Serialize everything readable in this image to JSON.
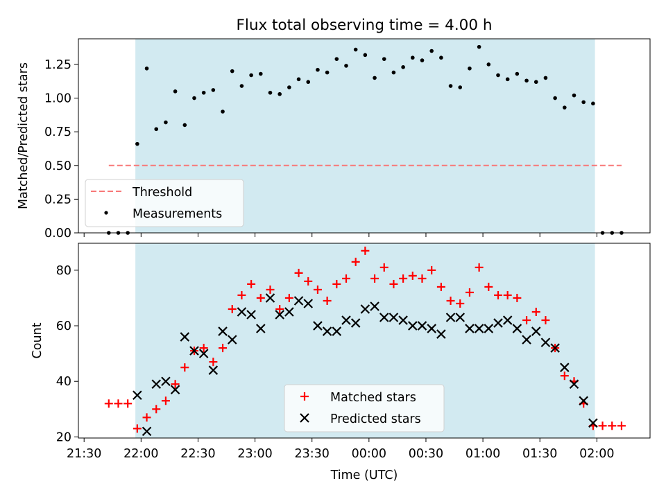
{
  "chart_data": [
    {
      "type": "scatter",
      "title": "Flux total observing time = 4.00 h",
      "ylabel": "Matched/Predicted stars",
      "xlabel": "",
      "ylim": [
        0.0,
        1.44
      ],
      "yticks": [
        0.0,
        0.25,
        0.5,
        0.75,
        1.0,
        1.25
      ],
      "ytick_labels": [
        "0.00",
        "0.25",
        "0.50",
        "0.75",
        "1.00",
        "1.25"
      ],
      "observing_window": [
        "21:57",
        "01:59"
      ],
      "threshold": {
        "name": "Threshold",
        "value": 0.5,
        "x_range": [
          "21:43",
          "02:13"
        ],
        "color": "#f87878"
      },
      "legend": {
        "placement": "lower-left",
        "entries": [
          "Threshold",
          "Measurements"
        ]
      },
      "series": [
        {
          "name": "Measurements",
          "color": "#000000",
          "x": [
            "21:43",
            "21:48",
            "21:53",
            "21:58",
            "22:03",
            "22:08",
            "22:13",
            "22:18",
            "22:23",
            "22:28",
            "22:33",
            "22:38",
            "22:43",
            "22:48",
            "22:53",
            "22:58",
            "23:03",
            "23:08",
            "23:13",
            "23:18",
            "23:23",
            "23:28",
            "23:33",
            "23:38",
            "23:43",
            "23:48",
            "23:53",
            "23:58",
            "00:03",
            "00:08",
            "00:13",
            "00:18",
            "00:23",
            "00:28",
            "00:33",
            "00:38",
            "00:43",
            "00:48",
            "00:53",
            "00:58",
            "01:03",
            "01:08",
            "01:13",
            "01:18",
            "01:23",
            "01:28",
            "01:33",
            "01:38",
            "01:43",
            "01:48",
            "01:53",
            "01:58",
            "02:03",
            "02:08",
            "02:13"
          ],
          "y": [
            0.0,
            0.0,
            0.0,
            0.66,
            1.22,
            0.77,
            0.82,
            1.05,
            0.8,
            1.0,
            1.04,
            1.06,
            0.9,
            1.2,
            1.09,
            1.17,
            1.18,
            1.04,
            1.03,
            1.08,
            1.14,
            1.12,
            1.21,
            1.19,
            1.29,
            1.24,
            1.36,
            1.32,
            1.15,
            1.29,
            1.19,
            1.23,
            1.3,
            1.28,
            1.35,
            1.3,
            1.09,
            1.08,
            1.22,
            1.38,
            1.25,
            1.17,
            1.14,
            1.18,
            1.13,
            1.12,
            1.15,
            1.0,
            0.93,
            1.02,
            0.97,
            0.96,
            0.0,
            0.0,
            0.0
          ]
        }
      ]
    },
    {
      "type": "scatter",
      "title": "",
      "ylabel": "Count",
      "xlabel": "Time (UTC)",
      "ylim": [
        19.6,
        89.7
      ],
      "yticks": [
        20,
        40,
        60,
        80
      ],
      "ytick_labels": [
        "20",
        "40",
        "60",
        "80"
      ],
      "xlim": [
        "21:27",
        "02:28"
      ],
      "xticks": [
        "21:30",
        "22:00",
        "22:30",
        "23:00",
        "23:30",
        "00:00",
        "00:30",
        "01:00",
        "01:30",
        "02:00"
      ],
      "observing_window": [
        "21:57",
        "01:59"
      ],
      "legend": {
        "placement": "lower-center",
        "entries": [
          "Matched stars",
          "Predicted stars"
        ]
      },
      "series": [
        {
          "name": "Matched stars",
          "marker": "+",
          "color": "#ff0000",
          "x": [
            "21:43",
            "21:48",
            "21:53",
            "21:58",
            "22:03",
            "22:08",
            "22:13",
            "22:18",
            "22:23",
            "22:28",
            "22:33",
            "22:38",
            "22:43",
            "22:48",
            "22:53",
            "22:58",
            "23:03",
            "23:08",
            "23:13",
            "23:18",
            "23:23",
            "23:28",
            "23:33",
            "23:38",
            "23:43",
            "23:48",
            "23:53",
            "23:58",
            "00:03",
            "00:08",
            "00:13",
            "00:18",
            "00:23",
            "00:28",
            "00:33",
            "00:38",
            "00:43",
            "00:48",
            "00:53",
            "00:58",
            "01:03",
            "01:08",
            "01:13",
            "01:18",
            "01:23",
            "01:28",
            "01:33",
            "01:38",
            "01:43",
            "01:48",
            "01:53",
            "01:58",
            "02:03",
            "02:08",
            "02:13"
          ],
          "y": [
            32,
            32,
            32,
            23,
            27,
            30,
            33,
            39,
            45,
            51,
            52,
            47,
            52,
            66,
            71,
            75,
            70,
            73,
            66,
            70,
            79,
            76,
            73,
            69,
            75,
            77,
            83,
            87,
            77,
            81,
            75,
            77,
            78,
            77,
            80,
            74,
            69,
            68,
            72,
            81,
            74,
            71,
            71,
            70,
            62,
            65,
            62,
            52,
            42,
            40,
            32,
            24,
            24,
            24,
            24
          ]
        },
        {
          "name": "Predicted stars",
          "marker": "x",
          "color": "#000000",
          "x": [
            "21:58",
            "22:03",
            "22:08",
            "22:13",
            "22:18",
            "22:23",
            "22:28",
            "22:33",
            "22:38",
            "22:43",
            "22:48",
            "22:53",
            "22:58",
            "23:03",
            "23:08",
            "23:13",
            "23:18",
            "23:23",
            "23:28",
            "23:33",
            "23:38",
            "23:43",
            "23:48",
            "23:53",
            "23:58",
            "00:03",
            "00:08",
            "00:13",
            "00:18",
            "00:23",
            "00:28",
            "00:33",
            "00:38",
            "00:43",
            "00:48",
            "00:53",
            "00:58",
            "01:03",
            "01:08",
            "01:13",
            "01:18",
            "01:23",
            "01:28",
            "01:33",
            "01:38",
            "01:43",
            "01:48",
            "01:53",
            "01:58"
          ],
          "y": [
            35,
            22,
            39,
            40,
            37,
            56,
            51,
            50,
            44,
            58,
            55,
            65,
            64,
            59,
            70,
            64,
            65,
            69,
            68,
            60,
            58,
            58,
            62,
            61,
            66,
            67,
            63,
            63,
            62,
            60,
            60,
            59,
            57,
            63,
            63,
            59,
            59,
            59,
            61,
            62,
            59,
            55,
            58,
            54,
            52,
            45,
            39,
            33,
            25
          ]
        }
      ]
    }
  ]
}
